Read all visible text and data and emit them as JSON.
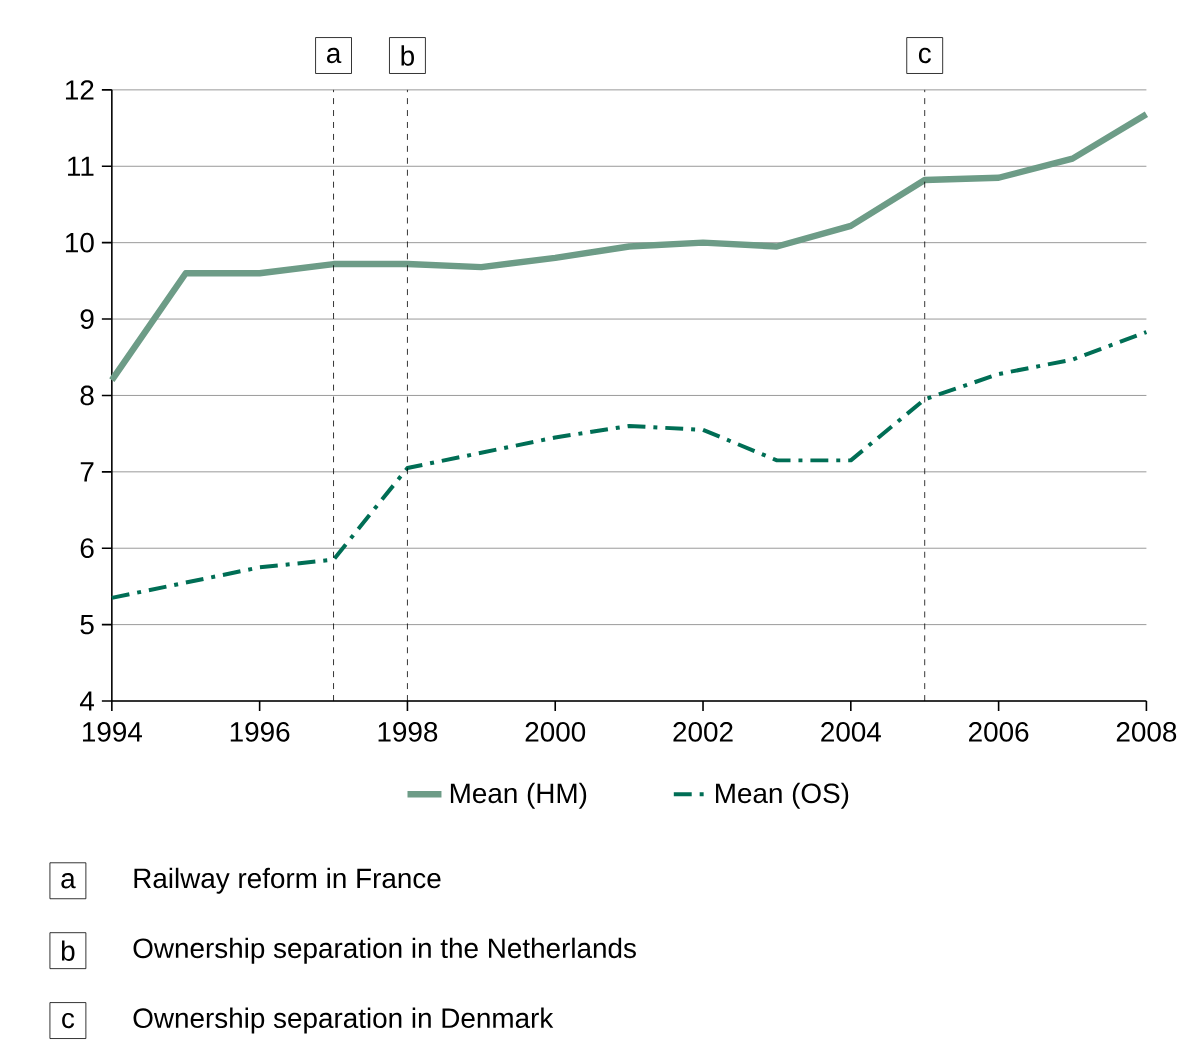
{
  "chart_data": {
    "type": "line",
    "x": [
      1994,
      1995,
      1996,
      1997,
      1998,
      1999,
      2000,
      2001,
      2002,
      2003,
      2004,
      2005,
      2006,
      2007,
      2008
    ],
    "series": [
      {
        "name": "Mean (HM)",
        "color": "#6d9c87",
        "line_style": "solid",
        "values": [
          8.2,
          9.6,
          9.6,
          9.72,
          9.72,
          9.68,
          9.8,
          9.95,
          10.0,
          9.95,
          10.22,
          10.82,
          10.85,
          11.1,
          11.68
        ]
      },
      {
        "name": "Mean (OS)",
        "color": "#006e55",
        "line_style": "dashdot",
        "values": [
          5.35,
          5.55,
          5.75,
          5.85,
          7.05,
          7.25,
          7.45,
          7.6,
          7.55,
          7.15,
          7.15,
          7.95,
          8.28,
          8.47,
          8.83
        ]
      }
    ],
    "xlim": [
      1994,
      2008
    ],
    "xticks": [
      1994,
      1996,
      1998,
      2000,
      2002,
      2004,
      2006,
      2008
    ],
    "ylim": [
      4,
      12
    ],
    "yticks": [
      4,
      5,
      6,
      7,
      8,
      9,
      10,
      11,
      12
    ],
    "grid": "y",
    "legend": "bottom",
    "marker": "none",
    "ref_lines": [
      {
        "axis": "x",
        "value": 1997,
        "label": "a",
        "color": "#000000",
        "line_style": "dashed"
      },
      {
        "axis": "x",
        "value": 1998,
        "label": "b",
        "color": "#000000",
        "line_style": "dashed"
      },
      {
        "axis": "x",
        "value": 2005,
        "label": "c",
        "color": "#000000",
        "line_style": "dashed"
      }
    ],
    "annotations": [
      "Railway reform in France",
      "Ownership separation in the Netherlands",
      "Ownership separation in Denmark"
    ]
  }
}
